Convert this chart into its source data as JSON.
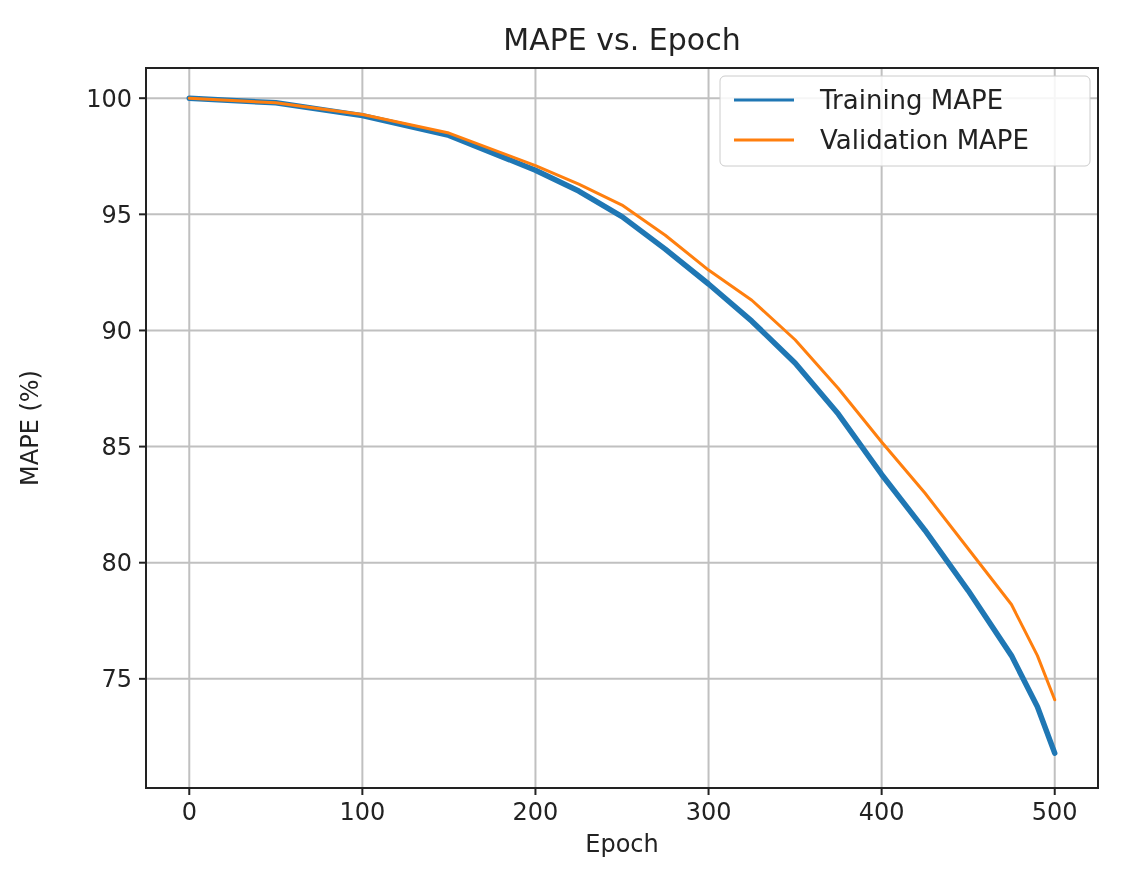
{
  "chart_data": {
    "type": "line",
    "title": "MAPE vs. Epoch",
    "xlabel": "Epoch",
    "ylabel": "MAPE (%)",
    "x": [
      0,
      50,
      100,
      150,
      200,
      225,
      250,
      275,
      300,
      325,
      350,
      375,
      400,
      425,
      450,
      475,
      490,
      500
    ],
    "series": [
      {
        "name": "Training MAPE",
        "color": "#1f77b4",
        "values": [
          100,
          99.8,
          99.25,
          98.4,
          96.9,
          96.0,
          94.9,
          93.5,
          92.0,
          90.4,
          88.6,
          86.4,
          83.8,
          81.4,
          78.8,
          76.0,
          73.8,
          71.8
        ]
      },
      {
        "name": "Validation MAPE",
        "color": "#ff7f0e",
        "values": [
          100,
          99.8,
          99.3,
          98.5,
          97.1,
          96.3,
          95.4,
          94.1,
          92.6,
          91.3,
          89.6,
          87.5,
          85.2,
          83.0,
          80.6,
          78.2,
          76.0,
          74.1
        ]
      }
    ],
    "xlim": [
      -25,
      525
    ],
    "ylim": [
      70.3,
      101.3
    ],
    "xticks": [
      0,
      100,
      200,
      300,
      400,
      500
    ],
    "yticks": [
      75,
      80,
      85,
      90,
      95,
      100
    ],
    "grid": true,
    "legend": "top right",
    "line_style": "solid",
    "marker": "none"
  }
}
